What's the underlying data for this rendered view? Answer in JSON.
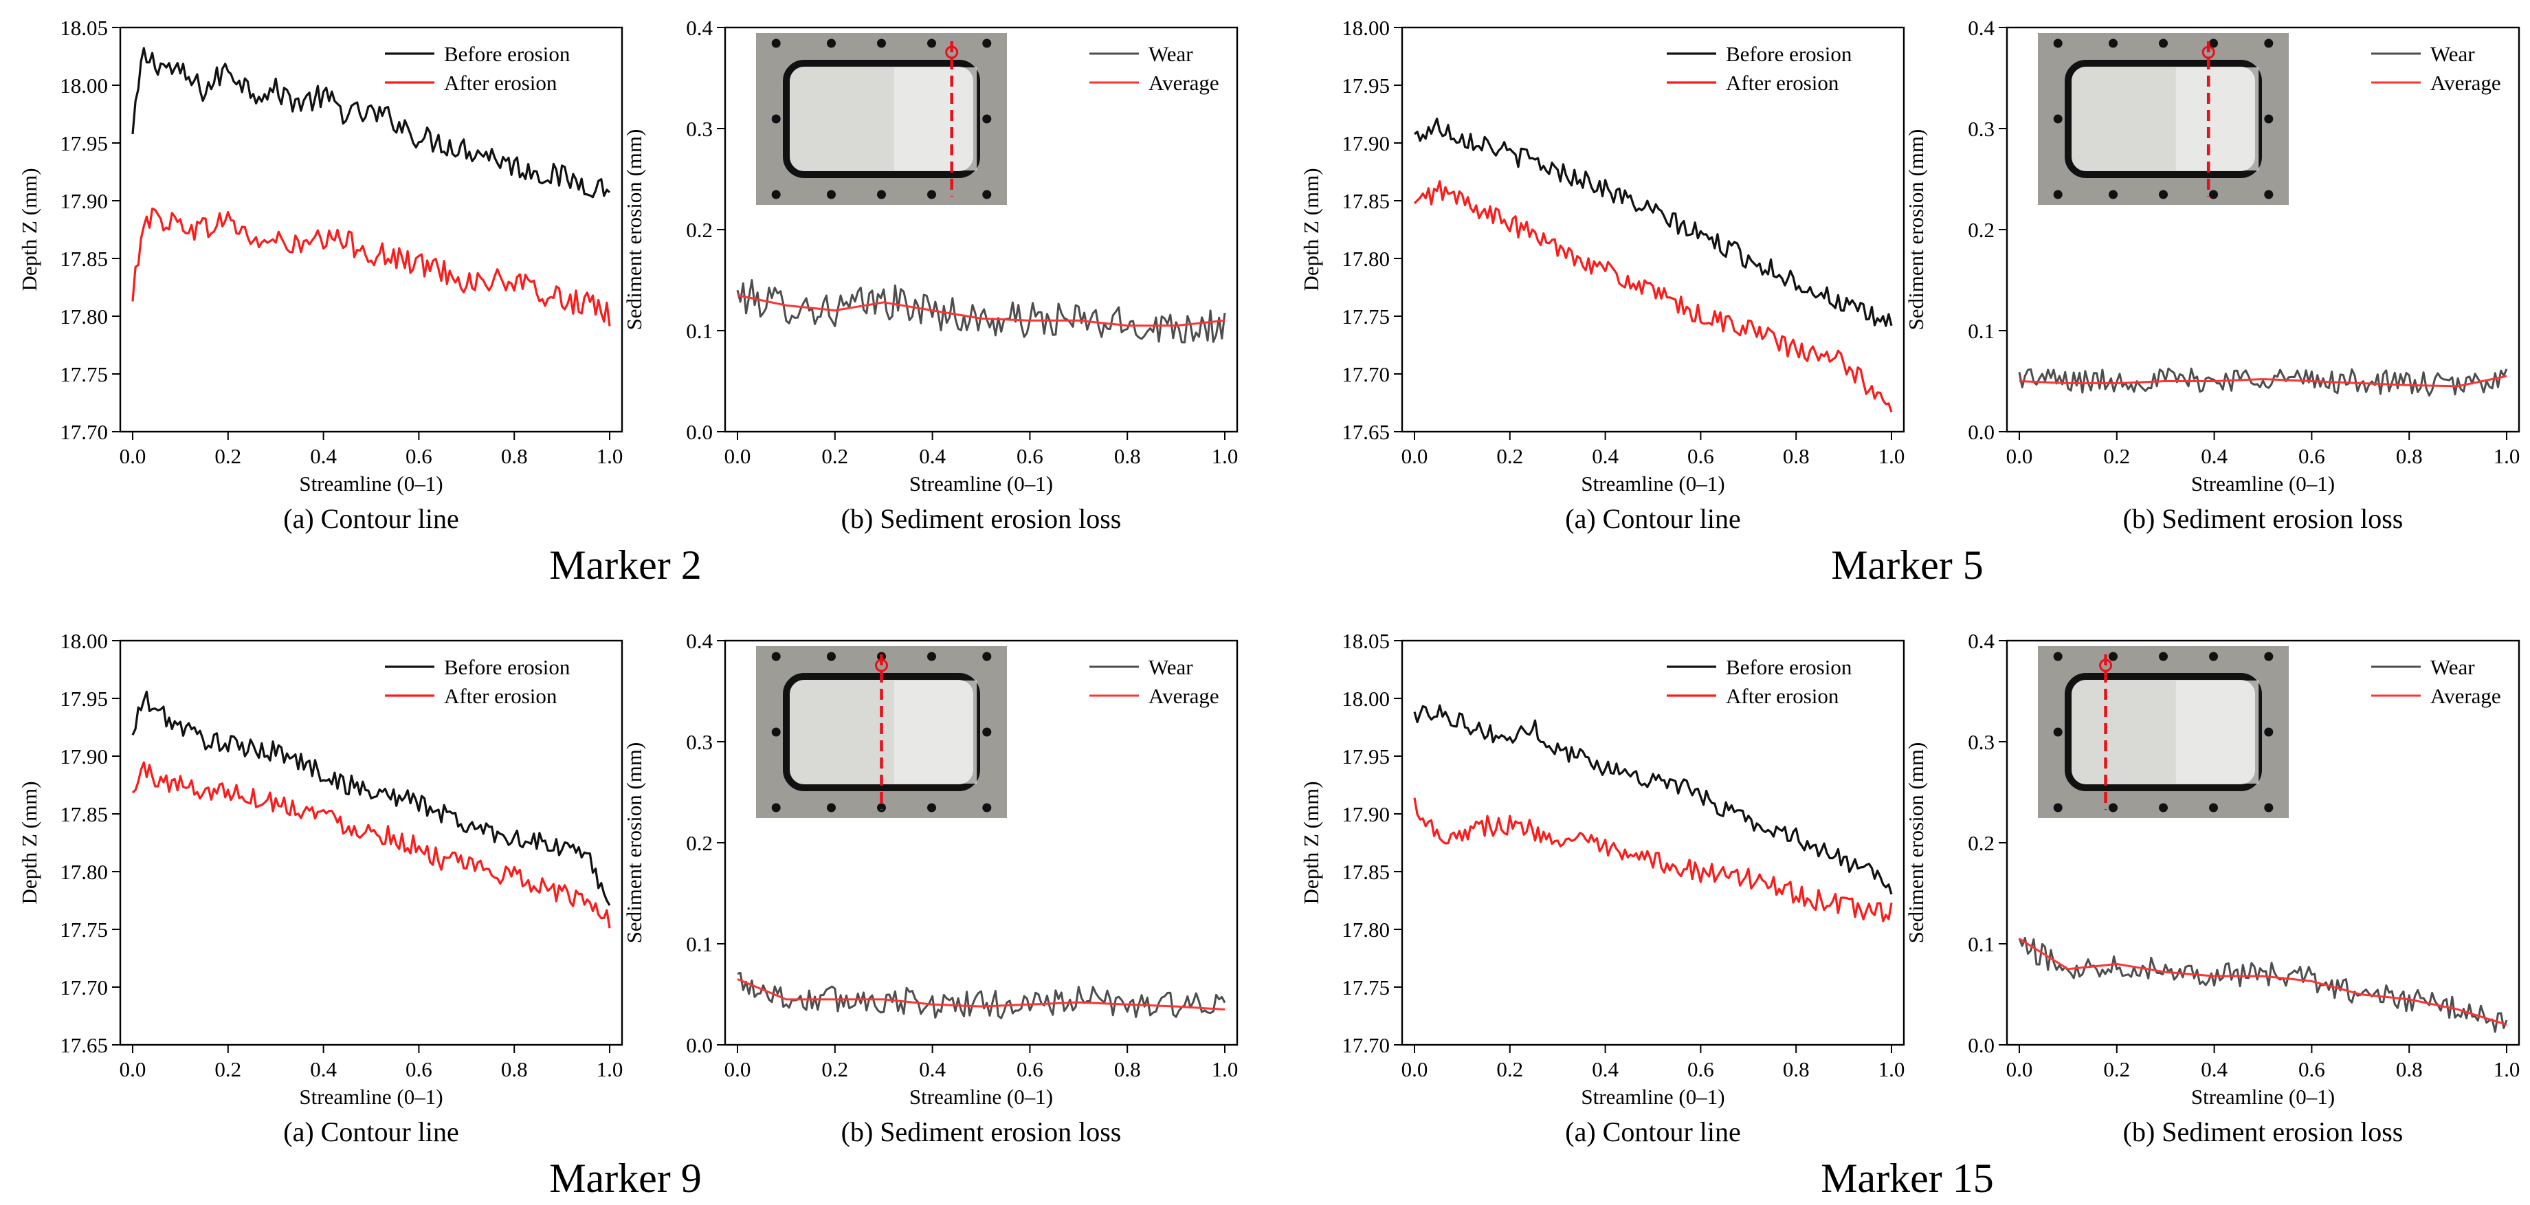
{
  "figure": {
    "colors": {
      "before": "#111111",
      "after": "#ff1a1a",
      "wear": "#4d4d4d",
      "average": "#ff3333",
      "axis": "#000000"
    },
    "markers": [
      {
        "title": "Marker 2",
        "contour": {
          "caption": "(a) Contour line",
          "xlabel": "Streamline (0–1)",
          "ylabel": "Depth Z (mm)",
          "ylim": [
            17.7,
            18.05
          ],
          "yticks": [
            "17.70",
            "17.75",
            "17.80",
            "17.85",
            "17.90",
            "17.95",
            "18.00",
            "18.05"
          ],
          "legend": [
            "Before erosion",
            "After erosion"
          ]
        },
        "erosion": {
          "caption": "(b) Sediment erosion loss",
          "xlabel": "Streamline (0–1)",
          "ylabel": "Sediment erosion  (mm)",
          "ylim": [
            0.0,
            0.4
          ],
          "yticks": [
            "0.0",
            "0.1",
            "0.2",
            "0.3",
            "0.4"
          ],
          "legend": [
            "Wear",
            "Average"
          ],
          "inset_cut": 0.78
        }
      },
      {
        "title": "Marker 5",
        "contour": {
          "caption": "(a) Contour line",
          "xlabel": "Streamline (0–1)",
          "ylabel": "Depth Z (mm)",
          "ylim": [
            17.65,
            18.0
          ],
          "yticks": [
            "17.65",
            "17.70",
            "17.75",
            "17.80",
            "17.85",
            "17.90",
            "17.95",
            "18.00"
          ],
          "legend": [
            "Before erosion",
            "After erosion"
          ]
        },
        "erosion": {
          "caption": "(b) Sediment erosion loss",
          "xlabel": "Streamline (0–1)",
          "ylabel": "Sediment erosion  (mm)",
          "ylim": [
            0.0,
            0.4
          ],
          "yticks": [
            "0.0",
            "0.1",
            "0.2",
            "0.3",
            "0.4"
          ],
          "legend": [
            "Wear",
            "Average"
          ],
          "inset_cut": 0.68
        }
      },
      {
        "title": "Marker 9",
        "contour": {
          "caption": "(a) Contour line",
          "xlabel": "Streamline (0–1)",
          "ylabel": "Depth Z (mm)",
          "ylim": [
            17.65,
            18.0
          ],
          "yticks": [
            "17.65",
            "17.70",
            "17.75",
            "17.80",
            "17.85",
            "17.90",
            "17.95",
            "18.00"
          ],
          "legend": [
            "Before erosion",
            "After erosion"
          ]
        },
        "erosion": {
          "caption": "(b) Sediment erosion loss",
          "xlabel": "Streamline (0–1)",
          "ylabel": "Sediment erosion  (mm)",
          "ylim": [
            0.0,
            0.4
          ],
          "yticks": [
            "0.0",
            "0.1",
            "0.2",
            "0.3",
            "0.4"
          ],
          "legend": [
            "Wear",
            "Average"
          ],
          "inset_cut": 0.5
        }
      },
      {
        "title": "Marker 15",
        "contour": {
          "caption": "(a) Contour line",
          "xlabel": "Streamline (0–1)",
          "ylabel": "Depth Z (mm)",
          "ylim": [
            17.7,
            18.05
          ],
          "yticks": [
            "17.70",
            "17.75",
            "17.80",
            "17.85",
            "17.90",
            "17.95",
            "18.00",
            "18.05"
          ],
          "legend": [
            "Before erosion",
            "After erosion"
          ]
        },
        "erosion": {
          "caption": "(b) Sediment erosion loss",
          "xlabel": "Streamline (0–1)",
          "ylabel": "Sediment erosion  (mm)",
          "ylim": [
            0.0,
            0.4
          ],
          "yticks": [
            "0.0",
            "0.1",
            "0.2",
            "0.3",
            "0.4"
          ],
          "legend": [
            "Wear",
            "Average"
          ],
          "inset_cut": 0.27
        }
      }
    ]
  },
  "chart_data": [
    {
      "type": "line",
      "panel": "Marker 2 (a)",
      "title": "(a) Contour line",
      "xlabel": "Streamline (0–1)",
      "ylabel": "Depth Z (mm)",
      "xlim": [
        0.0,
        1.0
      ],
      "ylim": [
        17.7,
        18.05
      ],
      "xticks": [
        "0.0",
        "0.2",
        "0.4",
        "0.6",
        "0.8",
        "1.0"
      ],
      "x": [
        0.0,
        0.02,
        0.05,
        0.1,
        0.15,
        0.2,
        0.25,
        0.3,
        0.35,
        0.4,
        0.45,
        0.5,
        0.55,
        0.6,
        0.65,
        0.7,
        0.75,
        0.8,
        0.85,
        0.9,
        0.95,
        1.0
      ],
      "series": [
        {
          "name": "Before erosion",
          "values": [
            17.955,
            18.025,
            18.02,
            18.01,
            17.995,
            18.015,
            17.995,
            17.995,
            17.985,
            17.99,
            17.975,
            17.975,
            17.97,
            17.955,
            17.95,
            17.945,
            17.94,
            17.93,
            17.925,
            17.92,
            17.915,
            17.91
          ],
          "noise": 0.011
        },
        {
          "name": "After erosion",
          "values": [
            17.81,
            17.885,
            17.885,
            17.88,
            17.875,
            17.885,
            17.865,
            17.865,
            17.86,
            17.865,
            17.865,
            17.855,
            17.85,
            17.845,
            17.84,
            17.83,
            17.83,
            17.83,
            17.82,
            17.815,
            17.81,
            17.8
          ],
          "noise": 0.011
        }
      ]
    },
    {
      "type": "line",
      "panel": "Marker 2 (b)",
      "title": "(b) Sediment erosion loss",
      "xlabel": "Streamline (0–1)",
      "ylabel": "Sediment erosion  (mm)",
      "xlim": [
        0.0,
        1.0
      ],
      "ylim": [
        0.0,
        0.4
      ],
      "xticks": [
        "0.0",
        "0.2",
        "0.4",
        "0.6",
        "0.8",
        "1.0"
      ],
      "x": [
        0.0,
        0.1,
        0.2,
        0.3,
        0.4,
        0.5,
        0.6,
        0.7,
        0.8,
        0.9,
        1.0
      ],
      "series": [
        {
          "name": "Wear",
          "values": [
            0.135,
            0.125,
            0.12,
            0.13,
            0.12,
            0.11,
            0.11,
            0.11,
            0.105,
            0.105,
            0.105
          ],
          "noise": 0.018
        },
        {
          "name": "Average",
          "values": [
            0.135,
            0.125,
            0.12,
            0.128,
            0.12,
            0.112,
            0.11,
            0.11,
            0.105,
            0.105,
            0.11
          ]
        }
      ]
    },
    {
      "type": "line",
      "panel": "Marker 5 (a)",
      "title": "(a) Contour line",
      "xlabel": "Streamline (0–1)",
      "ylabel": "Depth Z (mm)",
      "xlim": [
        0.0,
        1.0
      ],
      "ylim": [
        17.65,
        18.0
      ],
      "xticks": [
        "0.0",
        "0.2",
        "0.4",
        "0.6",
        "0.8",
        "1.0"
      ],
      "x": [
        0.0,
        0.05,
        0.1,
        0.15,
        0.2,
        0.25,
        0.3,
        0.35,
        0.4,
        0.45,
        0.5,
        0.55,
        0.6,
        0.65,
        0.7,
        0.75,
        0.8,
        0.85,
        0.9,
        0.95,
        1.0
      ],
      "series": [
        {
          "name": "Before erosion",
          "values": [
            17.905,
            17.915,
            17.905,
            17.9,
            17.89,
            17.885,
            17.875,
            17.87,
            17.86,
            17.85,
            17.84,
            17.83,
            17.82,
            17.81,
            17.8,
            17.79,
            17.78,
            17.77,
            17.76,
            17.75,
            17.745
          ],
          "noise": 0.009
        },
        {
          "name": "After erosion",
          "values": [
            17.845,
            17.86,
            17.85,
            17.84,
            17.83,
            17.82,
            17.81,
            17.8,
            17.79,
            17.78,
            17.77,
            17.76,
            17.75,
            17.745,
            17.74,
            17.73,
            17.72,
            17.715,
            17.71,
            17.69,
            17.675
          ],
          "noise": 0.009
        }
      ]
    },
    {
      "type": "line",
      "panel": "Marker 5 (b)",
      "title": "(b) Sediment erosion loss",
      "xlabel": "Streamline (0–1)",
      "ylabel": "Sediment erosion  (mm)",
      "xlim": [
        0.0,
        1.0
      ],
      "ylim": [
        0.0,
        0.4
      ],
      "xticks": [
        "0.0",
        "0.2",
        "0.4",
        "0.6",
        "0.8",
        "1.0"
      ],
      "x": [
        0.0,
        0.1,
        0.2,
        0.3,
        0.4,
        0.5,
        0.6,
        0.7,
        0.8,
        0.9,
        1.0
      ],
      "series": [
        {
          "name": "Wear",
          "values": [
            0.055,
            0.05,
            0.05,
            0.052,
            0.05,
            0.055,
            0.05,
            0.05,
            0.048,
            0.045,
            0.055
          ],
          "noise": 0.012
        },
        {
          "name": "Average",
          "values": [
            0.05,
            0.048,
            0.048,
            0.05,
            0.05,
            0.052,
            0.05,
            0.048,
            0.046,
            0.045,
            0.055
          ]
        }
      ]
    },
    {
      "type": "line",
      "panel": "Marker 9 (a)",
      "title": "(a) Contour line",
      "xlabel": "Streamline (0–1)",
      "ylabel": "Depth Z (mm)",
      "xlim": [
        0.0,
        1.0
      ],
      "ylim": [
        17.65,
        18.0
      ],
      "xticks": [
        "0.0",
        "0.2",
        "0.4",
        "0.6",
        "0.8",
        "1.0"
      ],
      "x": [
        0.0,
        0.02,
        0.05,
        0.1,
        0.15,
        0.2,
        0.25,
        0.3,
        0.35,
        0.4,
        0.45,
        0.5,
        0.55,
        0.6,
        0.65,
        0.7,
        0.75,
        0.8,
        0.85,
        0.9,
        0.95,
        1.0
      ],
      "series": [
        {
          "name": "Before erosion",
          "values": [
            17.915,
            17.95,
            17.94,
            17.925,
            17.915,
            17.91,
            17.905,
            17.905,
            17.895,
            17.885,
            17.875,
            17.87,
            17.865,
            17.86,
            17.85,
            17.84,
            17.835,
            17.83,
            17.825,
            17.82,
            17.815,
            17.775
          ],
          "noise": 0.009
        },
        {
          "name": "After erosion",
          "values": [
            17.865,
            17.89,
            17.88,
            17.875,
            17.87,
            17.87,
            17.865,
            17.86,
            17.855,
            17.85,
            17.84,
            17.835,
            17.83,
            17.82,
            17.81,
            17.805,
            17.8,
            17.795,
            17.79,
            17.78,
            17.775,
            17.76
          ],
          "noise": 0.009
        }
      ]
    },
    {
      "type": "line",
      "panel": "Marker 9 (b)",
      "title": "(b) Sediment erosion loss",
      "xlabel": "Streamline (0–1)",
      "ylabel": "Sediment erosion  (mm)",
      "xlim": [
        0.0,
        1.0
      ],
      "ylim": [
        0.0,
        0.4
      ],
      "xticks": [
        "0.0",
        "0.2",
        "0.4",
        "0.6",
        "0.8",
        "1.0"
      ],
      "x": [
        0.0,
        0.1,
        0.2,
        0.3,
        0.4,
        0.5,
        0.6,
        0.7,
        0.8,
        0.9,
        1.0
      ],
      "series": [
        {
          "name": "Wear",
          "values": [
            0.065,
            0.045,
            0.045,
            0.045,
            0.04,
            0.04,
            0.04,
            0.045,
            0.04,
            0.04,
            0.035
          ],
          "noise": 0.014
        },
        {
          "name": "Average",
          "values": [
            0.065,
            0.045,
            0.045,
            0.045,
            0.04,
            0.038,
            0.04,
            0.042,
            0.04,
            0.038,
            0.035
          ]
        }
      ]
    },
    {
      "type": "line",
      "panel": "Marker 15 (a)",
      "title": "(a) Contour line",
      "xlabel": "Streamline (0–1)",
      "ylabel": "Depth Z (mm)",
      "xlim": [
        0.0,
        1.0
      ],
      "ylim": [
        17.7,
        18.05
      ],
      "xticks": [
        "0.0",
        "0.2",
        "0.4",
        "0.6",
        "0.8",
        "1.0"
      ],
      "x": [
        0.0,
        0.05,
        0.1,
        0.15,
        0.2,
        0.25,
        0.3,
        0.35,
        0.4,
        0.45,
        0.5,
        0.55,
        0.6,
        0.65,
        0.7,
        0.75,
        0.8,
        0.85,
        0.9,
        0.95,
        1.0
      ],
      "series": [
        {
          "name": "Before erosion",
          "values": [
            17.985,
            17.99,
            17.98,
            17.97,
            17.965,
            17.975,
            17.955,
            17.95,
            17.94,
            17.935,
            17.93,
            17.925,
            17.915,
            17.905,
            17.895,
            17.885,
            17.88,
            17.87,
            17.86,
            17.85,
            17.835
          ],
          "noise": 0.008
        },
        {
          "name": "After erosion",
          "values": [
            17.91,
            17.88,
            17.885,
            17.89,
            17.89,
            17.885,
            17.88,
            17.875,
            17.87,
            17.86,
            17.86,
            17.855,
            17.85,
            17.845,
            17.845,
            17.84,
            17.83,
            17.825,
            17.82,
            17.815,
            17.815
          ],
          "noise": 0.009
        }
      ]
    },
    {
      "type": "line",
      "panel": "Marker 15 (b)",
      "title": "(b) Sediment erosion loss",
      "xlabel": "Streamline (0–1)",
      "ylabel": "Sediment erosion  (mm)",
      "xlim": [
        0.0,
        1.0
      ],
      "ylim": [
        0.0,
        0.4
      ],
      "xticks": [
        "0.0",
        "0.2",
        "0.4",
        "0.6",
        "0.8",
        "1.0"
      ],
      "x": [
        0.0,
        0.1,
        0.2,
        0.3,
        0.4,
        0.5,
        0.6,
        0.7,
        0.8,
        0.9,
        1.0
      ],
      "series": [
        {
          "name": "Wear",
          "values": [
            0.1,
            0.075,
            0.08,
            0.075,
            0.07,
            0.07,
            0.065,
            0.05,
            0.045,
            0.035,
            0.02
          ],
          "noise": 0.012
        },
        {
          "name": "Average",
          "values": [
            0.105,
            0.075,
            0.08,
            0.072,
            0.068,
            0.068,
            0.063,
            0.05,
            0.045,
            0.035,
            0.02
          ]
        }
      ]
    }
  ]
}
